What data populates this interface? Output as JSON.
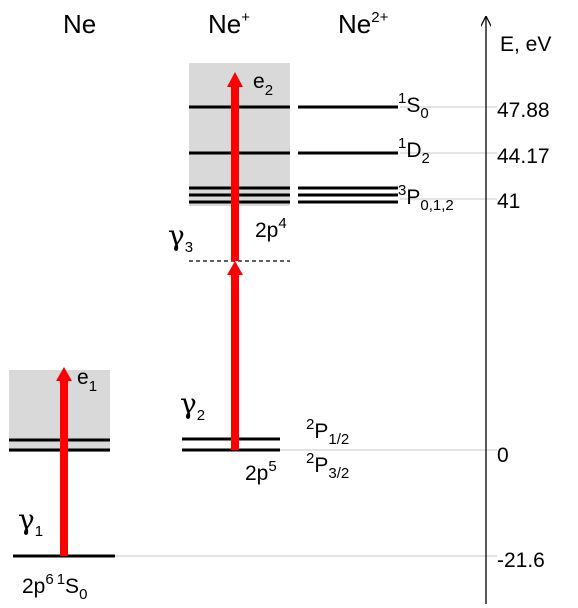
{
  "columns": {
    "neutral": "Ne",
    "ion1": {
      "base": "Ne",
      "sup": "+"
    },
    "ion2": {
      "base": "Ne",
      "sup": "2+"
    }
  },
  "axis": {
    "label": "E, eV",
    "ticks": [
      "47.88",
      "44.17",
      "41",
      "0",
      "-21.6"
    ]
  },
  "levels": {
    "ground": {
      "config": {
        "base": "2p",
        "sup": "6"
      },
      "term": {
        "sup": "1",
        "base": "S",
        "sub": "0"
      }
    },
    "ion1": {
      "config": {
        "base": "2p",
        "sup": "5"
      },
      "upper": {
        "sup": "2",
        "base": "P",
        "sub": "1/2"
      },
      "lower": {
        "sup": "2",
        "base": "P",
        "sub": "3/2"
      }
    },
    "ion2": {
      "config": {
        "base": "2p",
        "sup": "4"
      },
      "states": [
        {
          "sup": "1",
          "base": "S",
          "sub": "0"
        },
        {
          "sup": "1",
          "base": "D",
          "sub": "2"
        },
        {
          "sup": "3",
          "base": "P",
          "sub": "0,1,2"
        }
      ]
    }
  },
  "photons": [
    {
      "base": "γ",
      "sub": "1"
    },
    {
      "base": "γ",
      "sub": "2"
    },
    {
      "base": "γ",
      "sub": "3"
    }
  ],
  "electrons": [
    {
      "base": "e",
      "sub": "1"
    },
    {
      "base": "e",
      "sub": "2"
    }
  ],
  "colors": {
    "arrow": "#ff0000",
    "continuum": "#d9d9d9",
    "level": "#000000",
    "guide": "#c8c8c8"
  }
}
